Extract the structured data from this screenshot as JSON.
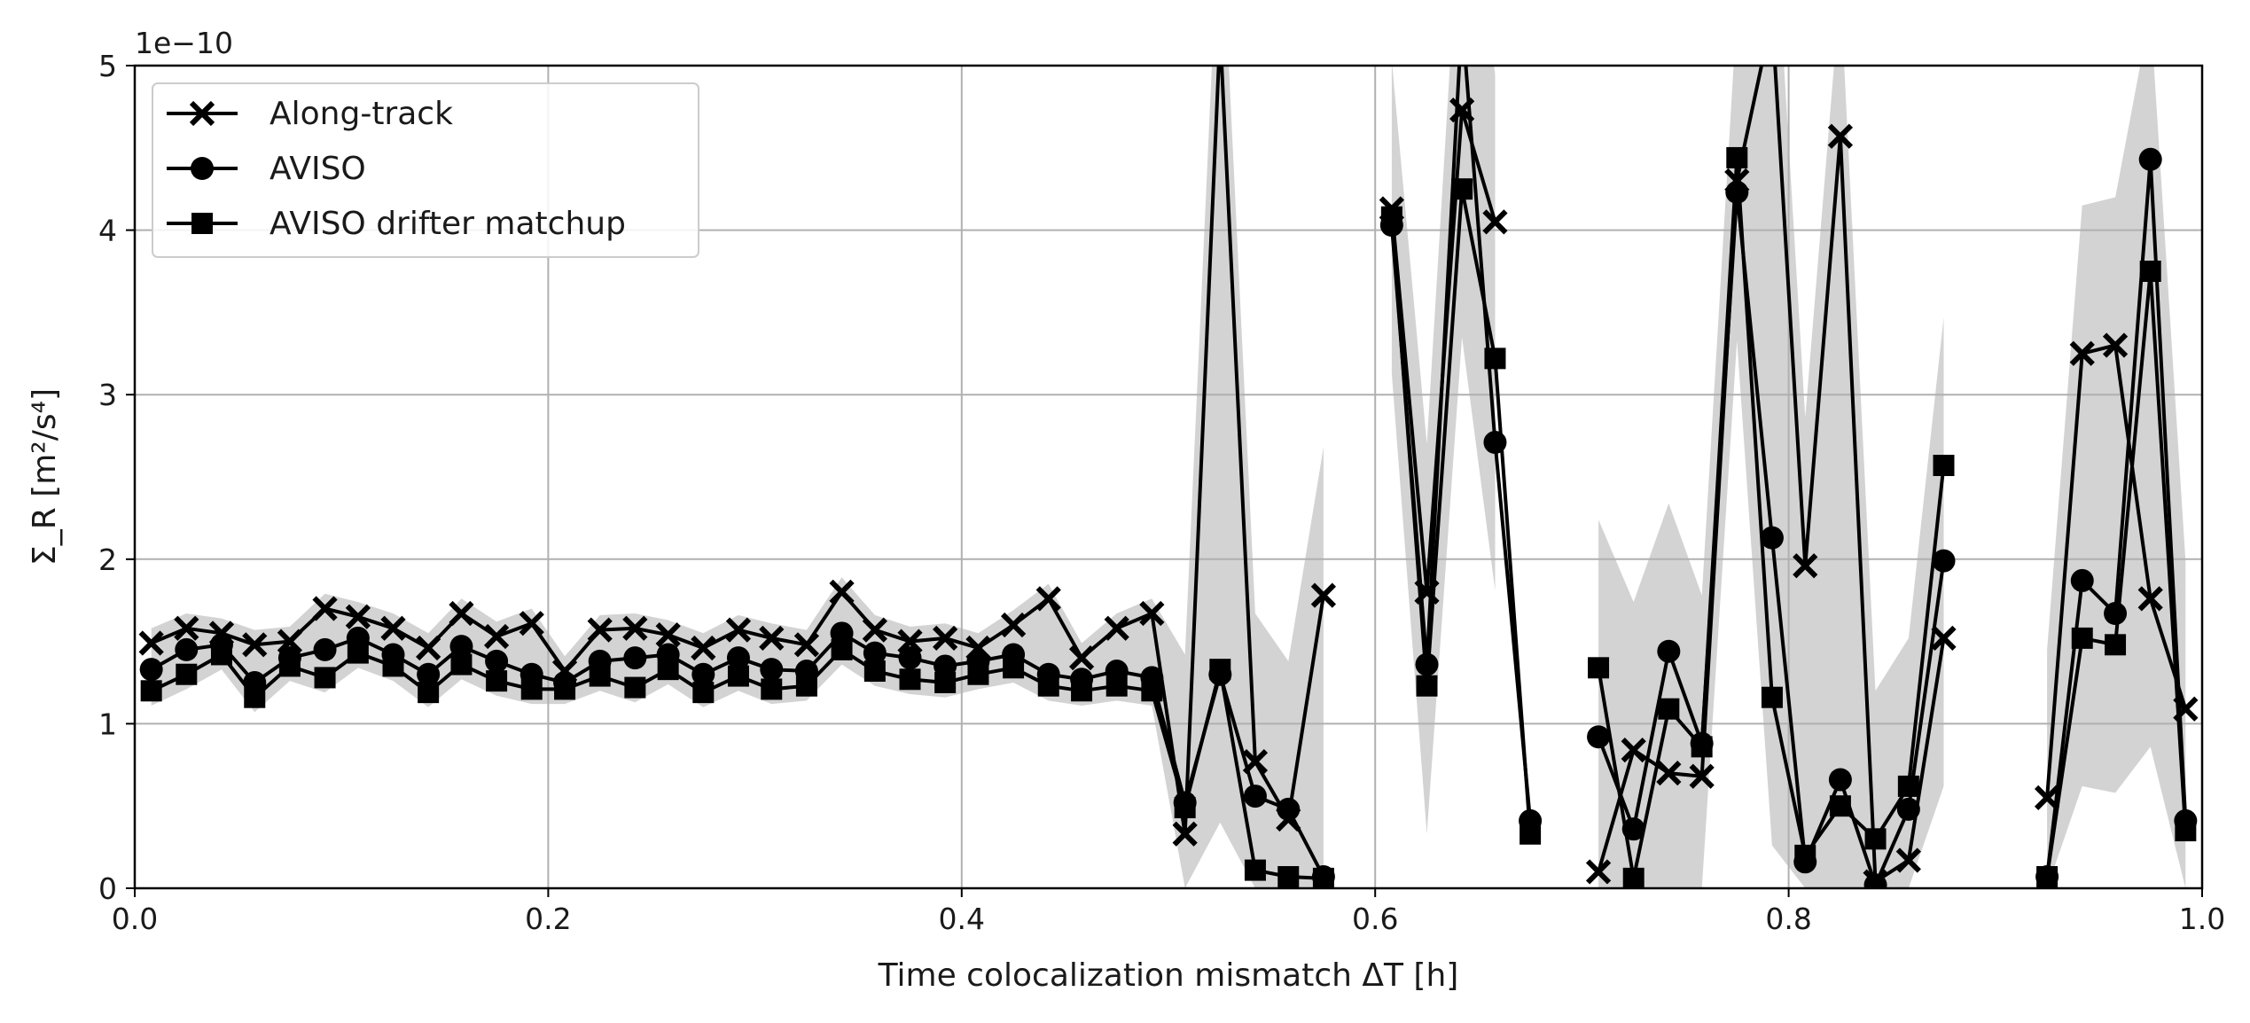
{
  "chart_data": {
    "type": "line",
    "xlabel": "Time colocalization mismatch ΔT [h]",
    "ylabel": "Σ_R [m²/s⁴]",
    "y_scale_label": "1e−10",
    "xlim": [
      0,
      1
    ],
    "ylim": [
      0,
      5
    ],
    "x_ticks": [
      0,
      0.2,
      0.4,
      0.6,
      0.8,
      1.0
    ],
    "x_tick_labels": [
      "0.0",
      "0.2",
      "0.4",
      "0.6",
      "0.8",
      "1.0"
    ],
    "y_ticks": [
      0,
      1,
      2,
      3,
      4,
      5
    ],
    "y_tick_labels": [
      "0",
      "1",
      "2",
      "3",
      "4",
      "5"
    ],
    "grid": true,
    "legend_position": "top-left",
    "band_color": "#d3d3d3",
    "line_color": "#000000",
    "series": [
      {
        "name": "Along-track",
        "marker": "x",
        "points": [
          [
            0.008,
            1.49
          ],
          [
            0.025,
            1.58
          ],
          [
            0.042,
            1.55
          ],
          [
            0.058,
            1.48
          ],
          [
            0.075,
            1.5
          ],
          [
            0.092,
            1.7
          ],
          [
            0.108,
            1.65
          ],
          [
            0.125,
            1.58
          ],
          [
            0.142,
            1.46
          ],
          [
            0.158,
            1.67
          ],
          [
            0.175,
            1.53
          ],
          [
            0.192,
            1.61
          ],
          [
            0.208,
            1.32
          ],
          [
            0.225,
            1.57
          ],
          [
            0.242,
            1.58
          ],
          [
            0.258,
            1.54
          ],
          [
            0.275,
            1.46
          ],
          [
            0.292,
            1.57
          ],
          [
            0.308,
            1.52
          ],
          [
            0.325,
            1.48
          ],
          [
            0.342,
            1.8
          ],
          [
            0.358,
            1.57
          ],
          [
            0.375,
            1.5
          ],
          [
            0.392,
            1.52
          ],
          [
            0.408,
            1.46
          ],
          [
            0.425,
            1.6
          ],
          [
            0.442,
            1.76
          ],
          [
            0.458,
            1.4
          ],
          [
            0.475,
            1.58
          ],
          [
            0.492,
            1.67
          ],
          [
            0.508,
            0.33
          ],
          [
            0.525,
            5.2
          ],
          [
            0.542,
            0.77
          ],
          [
            0.558,
            0.42
          ],
          [
            0.575,
            1.78
          ],
          null,
          [
            0.608,
            4.13
          ],
          [
            0.625,
            1.8
          ],
          [
            0.642,
            4.73
          ],
          [
            0.658,
            4.05
          ],
          null,
          [
            0.708,
            0.1
          ],
          [
            0.725,
            0.84
          ],
          [
            0.742,
            0.7
          ],
          [
            0.758,
            0.68
          ],
          [
            0.775,
            4.3
          ],
          [
            0.792,
            5.3
          ],
          [
            0.808,
            1.96
          ],
          [
            0.825,
            4.57
          ],
          [
            0.842,
            0.04
          ],
          [
            0.858,
            0.17
          ],
          [
            0.875,
            1.52
          ],
          null,
          [
            0.925,
            0.55
          ],
          [
            0.942,
            3.25
          ],
          [
            0.958,
            3.3
          ],
          [
            0.975,
            1.76
          ],
          [
            0.992,
            1.09
          ]
        ]
      },
      {
        "name": "AVISO",
        "marker": "circle",
        "points": [
          [
            0.008,
            1.33
          ],
          [
            0.025,
            1.45
          ],
          [
            0.042,
            1.48
          ],
          [
            0.058,
            1.25
          ],
          [
            0.075,
            1.4
          ],
          [
            0.092,
            1.45
          ],
          [
            0.108,
            1.52
          ],
          [
            0.125,
            1.42
          ],
          [
            0.142,
            1.3
          ],
          [
            0.158,
            1.47
          ],
          [
            0.175,
            1.38
          ],
          [
            0.192,
            1.3
          ],
          [
            0.208,
            1.25
          ],
          [
            0.225,
            1.38
          ],
          [
            0.242,
            1.4
          ],
          [
            0.258,
            1.42
          ],
          [
            0.275,
            1.3
          ],
          [
            0.292,
            1.4
          ],
          [
            0.308,
            1.33
          ],
          [
            0.325,
            1.32
          ],
          [
            0.342,
            1.55
          ],
          [
            0.358,
            1.43
          ],
          [
            0.375,
            1.4
          ],
          [
            0.392,
            1.35
          ],
          [
            0.408,
            1.38
          ],
          [
            0.425,
            1.42
          ],
          [
            0.442,
            1.3
          ],
          [
            0.458,
            1.27
          ],
          [
            0.475,
            1.32
          ],
          [
            0.492,
            1.28
          ],
          [
            0.508,
            0.52
          ],
          [
            0.525,
            1.3
          ],
          [
            0.542,
            0.56
          ],
          [
            0.558,
            0.48
          ],
          [
            0.575,
            0.07
          ],
          null,
          [
            0.608,
            4.03
          ],
          [
            0.625,
            1.36
          ],
          [
            0.642,
            5.3
          ],
          [
            0.658,
            2.71
          ],
          [
            0.675,
            0.41
          ],
          null,
          [
            0.708,
            0.92
          ],
          [
            0.725,
            0.36
          ],
          [
            0.742,
            1.44
          ],
          [
            0.758,
            0.88
          ],
          [
            0.775,
            4.23
          ],
          [
            0.792,
            2.13
          ],
          [
            0.808,
            0.16
          ],
          [
            0.825,
            0.66
          ],
          [
            0.842,
            0.02
          ],
          [
            0.858,
            0.48
          ],
          [
            0.875,
            1.99
          ],
          null,
          [
            0.925,
            0.07
          ],
          [
            0.942,
            1.87
          ],
          [
            0.958,
            1.67
          ],
          [
            0.975,
            4.43
          ],
          [
            0.992,
            0.41
          ]
        ]
      },
      {
        "name": "AVISO drifter matchup",
        "marker": "square",
        "points": [
          [
            0.008,
            1.2
          ],
          [
            0.025,
            1.3
          ],
          [
            0.042,
            1.42
          ],
          [
            0.058,
            1.16
          ],
          [
            0.075,
            1.35
          ],
          [
            0.092,
            1.28
          ],
          [
            0.108,
            1.43
          ],
          [
            0.125,
            1.35
          ],
          [
            0.142,
            1.19
          ],
          [
            0.158,
            1.36
          ],
          [
            0.175,
            1.26
          ],
          [
            0.192,
            1.21
          ],
          [
            0.208,
            1.21
          ],
          [
            0.225,
            1.29
          ],
          [
            0.242,
            1.22
          ],
          [
            0.258,
            1.33
          ],
          [
            0.275,
            1.19
          ],
          [
            0.292,
            1.29
          ],
          [
            0.308,
            1.21
          ],
          [
            0.325,
            1.23
          ],
          [
            0.342,
            1.45
          ],
          [
            0.358,
            1.32
          ],
          [
            0.375,
            1.27
          ],
          [
            0.392,
            1.25
          ],
          [
            0.408,
            1.3
          ],
          [
            0.425,
            1.34
          ],
          [
            0.442,
            1.23
          ],
          [
            0.458,
            1.2
          ],
          [
            0.475,
            1.23
          ],
          [
            0.492,
            1.2
          ],
          [
            0.508,
            0.49
          ],
          [
            0.525,
            1.33
          ],
          [
            0.542,
            0.11
          ],
          [
            0.558,
            0.07
          ],
          [
            0.575,
            0.06
          ],
          null,
          [
            0.608,
            4.08
          ],
          [
            0.625,
            1.23
          ],
          [
            0.642,
            4.25
          ],
          [
            0.658,
            3.22
          ],
          [
            0.675,
            0.33
          ],
          null,
          [
            0.708,
            1.34
          ],
          [
            0.725,
            0.06
          ],
          [
            0.742,
            1.09
          ],
          [
            0.758,
            0.86
          ],
          [
            0.775,
            4.44
          ],
          [
            0.792,
            1.16
          ],
          [
            0.808,
            0.2
          ],
          [
            0.825,
            0.5
          ],
          [
            0.842,
            0.3
          ],
          [
            0.858,
            0.62
          ],
          [
            0.875,
            2.57
          ],
          null,
          [
            0.925,
            0.07
          ],
          [
            0.942,
            1.52
          ],
          [
            0.958,
            1.48
          ],
          [
            0.975,
            3.75
          ],
          [
            0.992,
            0.35
          ]
        ]
      }
    ]
  }
}
